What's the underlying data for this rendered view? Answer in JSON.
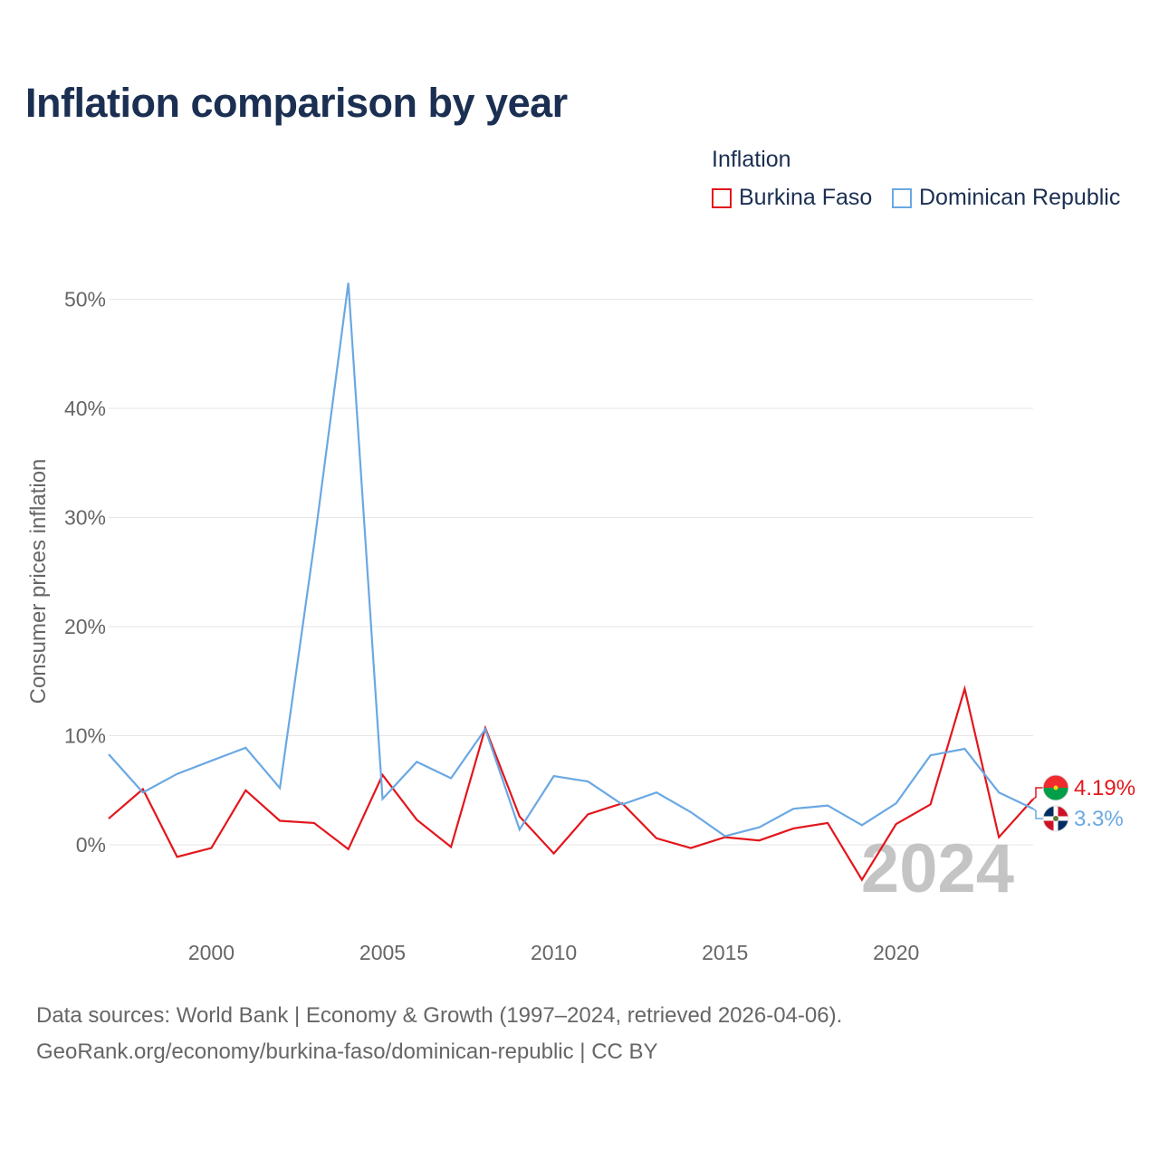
{
  "title": "Inflation comparison by year",
  "legend": {
    "title": "Inflation",
    "items": [
      {
        "label": "Burkina Faso",
        "color": "#e3161c"
      },
      {
        "label": "Dominican Republic",
        "color": "#6aa8e3"
      }
    ]
  },
  "footer": {
    "line1": "Data sources: World Bank | Economy & Growth (1997–2024, retrieved 2026-04-06).",
    "line2": "GeoRank.org/economy/burkina-faso/dominican-republic | CC BY"
  },
  "chart_data": {
    "type": "line",
    "title": "Inflation comparison by year",
    "xlabel": "",
    "ylabel": "Consumer prices inflation",
    "x": [
      1997,
      1998,
      1999,
      2000,
      2001,
      2002,
      2003,
      2004,
      2005,
      2006,
      2007,
      2008,
      2009,
      2010,
      2011,
      2012,
      2013,
      2014,
      2015,
      2016,
      2017,
      2018,
      2019,
      2020,
      2021,
      2022,
      2023,
      2024
    ],
    "xlim": [
      1997,
      2024
    ],
    "ylim": [
      -6,
      53
    ],
    "x_ticks": [
      2000,
      2005,
      2010,
      2015,
      2020
    ],
    "x_tick_labels": [
      "2000",
      "2005",
      "2010",
      "2015",
      "2020"
    ],
    "y_ticks": [
      0,
      10,
      20,
      30,
      40,
      50
    ],
    "y_tick_labels": [
      "0%",
      "10%",
      "20%",
      "30%",
      "40%",
      "50%"
    ],
    "grid": true,
    "watermark_year": "2024",
    "series": [
      {
        "name": "Burkina Faso",
        "color": "#e3161c",
        "values": [
          2.4,
          5.1,
          -1.1,
          -0.3,
          5.0,
          2.2,
          2.0,
          -0.4,
          6.4,
          2.3,
          -0.2,
          10.7,
          2.6,
          -0.8,
          2.8,
          3.8,
          0.6,
          -0.3,
          0.7,
          0.4,
          1.5,
          2.0,
          -3.2,
          1.9,
          3.7,
          14.3,
          0.7,
          4.19
        ],
        "end_label": "4.19%"
      },
      {
        "name": "Dominican Republic",
        "color": "#6aa8e3",
        "values": [
          8.3,
          4.8,
          6.5,
          7.7,
          8.9,
          5.2,
          27.5,
          51.5,
          4.2,
          7.6,
          6.1,
          10.6,
          1.4,
          6.3,
          5.8,
          3.7,
          4.8,
          3.0,
          0.8,
          1.6,
          3.3,
          3.6,
          1.8,
          3.8,
          8.2,
          8.8,
          4.8,
          3.3
        ],
        "end_label": "3.3%"
      }
    ]
  }
}
